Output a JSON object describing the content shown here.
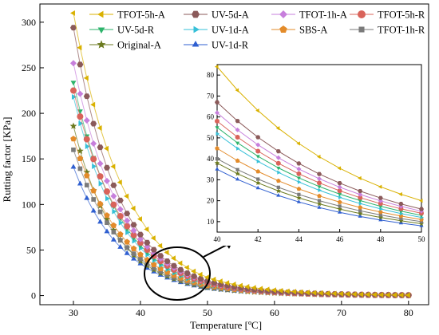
{
  "chart_data": {
    "type": "scatter",
    "xlabel": "Temperature [ºC]",
    "ylabel": "Rutting factor [KPa]",
    "xlim": [
      25,
      83
    ],
    "ylim": [
      -10,
      320
    ],
    "xticks": [
      30,
      40,
      50,
      60,
      70,
      80
    ],
    "yticks": [
      0,
      50,
      100,
      150,
      200,
      250,
      300
    ],
    "x": [
      30,
      40,
      50,
      60,
      70,
      80
    ],
    "grid": false,
    "legend": "top",
    "series": [
      {
        "name": "TFOT-5h-A",
        "marker": "triangle-left",
        "color": "#d9b100",
        "values": [
          310,
          84,
          20,
          6,
          2,
          0.5
        ]
      },
      {
        "name": "UV-5d-A",
        "marker": "hexagon",
        "color": "#8b5a5a",
        "values": [
          294,
          67,
          16,
          4.5,
          1.5,
          0.4
        ]
      },
      {
        "name": "TFOT-1h-A",
        "marker": "diamond",
        "color": "#c77fdc",
        "values": [
          255,
          62,
          15,
          4.2,
          1.4,
          0.4
        ]
      },
      {
        "name": "TFOT-5h-R",
        "marker": "circle",
        "color": "#d9635a",
        "values": [
          225,
          58,
          14,
          4,
          1.3,
          0.4
        ]
      },
      {
        "name": "UV-5d-R",
        "marker": "triangle-down",
        "color": "#2db36b",
        "values": [
          234,
          55,
          13,
          3.8,
          1.2,
          0.3
        ]
      },
      {
        "name": "UV-1d-A",
        "marker": "triangle-right",
        "color": "#36c0d8",
        "values": [
          218,
          52,
          12,
          3.5,
          1.1,
          0.3
        ]
      },
      {
        "name": "SBS-A",
        "marker": "pentagon",
        "color": "#e38b2a",
        "values": [
          172,
          45,
          11,
          3.2,
          1.0,
          0.3
        ]
      },
      {
        "name": "TFOT-1h-R",
        "marker": "square",
        "color": "#7a7a7a",
        "values": [
          160,
          40,
          10,
          3,
          0.9,
          0.3
        ]
      },
      {
        "name": "Original-A",
        "marker": "star",
        "color": "#6b7a1f",
        "values": [
          186,
          38,
          9,
          2.8,
          0.9,
          0.3
        ]
      },
      {
        "name": "UV-1d-R",
        "marker": "triangle-up",
        "color": "#2f5fd0",
        "values": [
          141,
          35,
          8,
          2.5,
          0.8,
          0.2
        ]
      }
    ],
    "inset": {
      "xlim": [
        40,
        50
      ],
      "ylim": [
        5,
        85
      ],
      "xticks": [
        40,
        42,
        44,
        46,
        48,
        50
      ],
      "yticks": [
        10,
        20,
        30,
        40,
        50,
        60,
        70,
        80
      ]
    }
  }
}
